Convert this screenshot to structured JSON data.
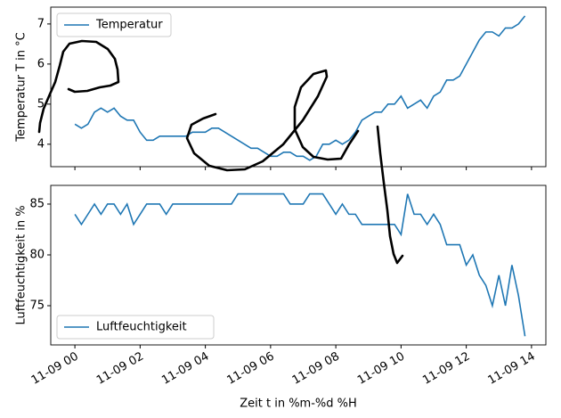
{
  "chart_data": [
    {
      "type": "line",
      "y_label": "Temperatur T in °C",
      "legend": "upper left",
      "xlim": [
        -0.74,
        14.44
      ],
      "ylim": [
        3.44,
        7.42
      ],
      "yticks": [
        4,
        5,
        6,
        7
      ],
      "x": [
        0,
        0.2,
        0.4,
        0.6,
        0.8,
        1,
        1.2,
        1.4,
        1.6,
        1.8,
        2,
        2.2,
        2.4,
        2.6,
        2.8,
        3,
        3.2,
        3.4,
        3.6,
        3.8,
        4,
        4.2,
        4.4,
        4.6,
        4.8,
        5,
        5.2,
        5.4,
        5.6,
        5.8,
        6,
        6.2,
        6.4,
        6.6,
        6.8,
        7,
        7.2,
        7.4,
        7.6,
        7.8,
        8,
        8.2,
        8.4,
        8.6,
        8.8,
        9,
        9.2,
        9.4,
        9.6,
        9.8,
        10,
        10.2,
        10.4,
        10.6,
        10.8,
        11,
        11.2,
        11.4,
        11.6,
        11.8,
        12,
        12.2,
        12.4,
        12.6,
        12.8,
        13,
        13.2,
        13.4,
        13.6,
        13.8
      ],
      "series": [
        {
          "name": "Temperatur",
          "color": "#1f77b4",
          "values": [
            4.5,
            4.4,
            4.5,
            4.8,
            4.9,
            4.8,
            4.9,
            4.7,
            4.6,
            4.6,
            4.3,
            4.1,
            4.1,
            4.2,
            4.2,
            4.2,
            4.2,
            4.2,
            4.3,
            4.3,
            4.3,
            4.4,
            4.4,
            4.3,
            4.2,
            4.1,
            4.0,
            3.9,
            3.9,
            3.8,
            3.7,
            3.7,
            3.8,
            3.8,
            3.7,
            3.7,
            3.6,
            3.7,
            4.0,
            4.0,
            4.1,
            4.0,
            4.1,
            4.3,
            4.6,
            4.7,
            4.8,
            4.8,
            5.0,
            5.0,
            5.2,
            4.9,
            5.0,
            5.1,
            4.9,
            5.2,
            5.3,
            5.6,
            5.6,
            5.7,
            6.0,
            6.3,
            6.6,
            6.8,
            6.8,
            6.7,
            6.9,
            6.9,
            7.0,
            7.2
          ]
        }
      ]
    },
    {
      "type": "line",
      "y_label": "Luftfeuchtigkeit  in %",
      "x_label": "Zeit t in %m-%d %H",
      "legend": "lower left",
      "xlim": [
        -0.74,
        14.44
      ],
      "ylim": [
        71.14,
        86.84
      ],
      "yticks": [
        75,
        80,
        85
      ],
      "xticks": [
        {
          "value": 0,
          "label": "11-09 00"
        },
        {
          "value": 2,
          "label": "11-09 02"
        },
        {
          "value": 4,
          "label": "11-09 04"
        },
        {
          "value": 6,
          "label": "11-09 06"
        },
        {
          "value": 8,
          "label": "11-09 08"
        },
        {
          "value": 10,
          "label": "11-09 10"
        },
        {
          "value": 12,
          "label": "11-09 12"
        },
        {
          "value": 14,
          "label": "11-09 14"
        }
      ],
      "x": [
        0,
        0.2,
        0.4,
        0.6,
        0.8,
        1,
        1.2,
        1.4,
        1.6,
        1.8,
        2,
        2.2,
        2.4,
        2.6,
        2.8,
        3,
        3.2,
        3.4,
        3.6,
        3.8,
        4,
        4.2,
        4.4,
        4.6,
        4.8,
        5,
        5.2,
        5.4,
        5.6,
        5.8,
        6,
        6.2,
        6.4,
        6.6,
        6.8,
        7,
        7.2,
        7.4,
        7.6,
        7.8,
        8,
        8.2,
        8.4,
        8.6,
        8.8,
        9,
        9.2,
        9.4,
        9.6,
        9.8,
        10,
        10.2,
        10.4,
        10.6,
        10.8,
        11,
        11.2,
        11.4,
        11.6,
        11.8,
        12,
        12.2,
        12.4,
        12.6,
        12.8,
        13,
        13.2,
        13.4,
        13.6,
        13.8
      ],
      "series": [
        {
          "name": "Luftfeuchtigkeit",
          "color": "#1f77b4",
          "values": [
            84,
            83,
            84,
            85,
            84,
            85,
            85,
            84,
            85,
            83,
            84,
            85,
            85,
            85,
            84,
            85,
            85,
            85,
            85,
            85,
            85,
            85,
            85,
            85,
            85,
            86,
            86,
            86,
            86,
            86,
            86,
            86,
            86,
            85,
            85,
            85,
            86,
            86,
            86,
            85,
            84,
            85,
            84,
            84,
            83,
            83,
            83,
            83,
            83,
            83,
            82,
            86,
            84,
            84,
            83,
            84,
            83,
            81,
            81,
            81,
            79,
            80,
            78,
            77,
            75,
            78,
            75,
            79,
            76,
            72
          ]
        }
      ]
    }
  ]
}
